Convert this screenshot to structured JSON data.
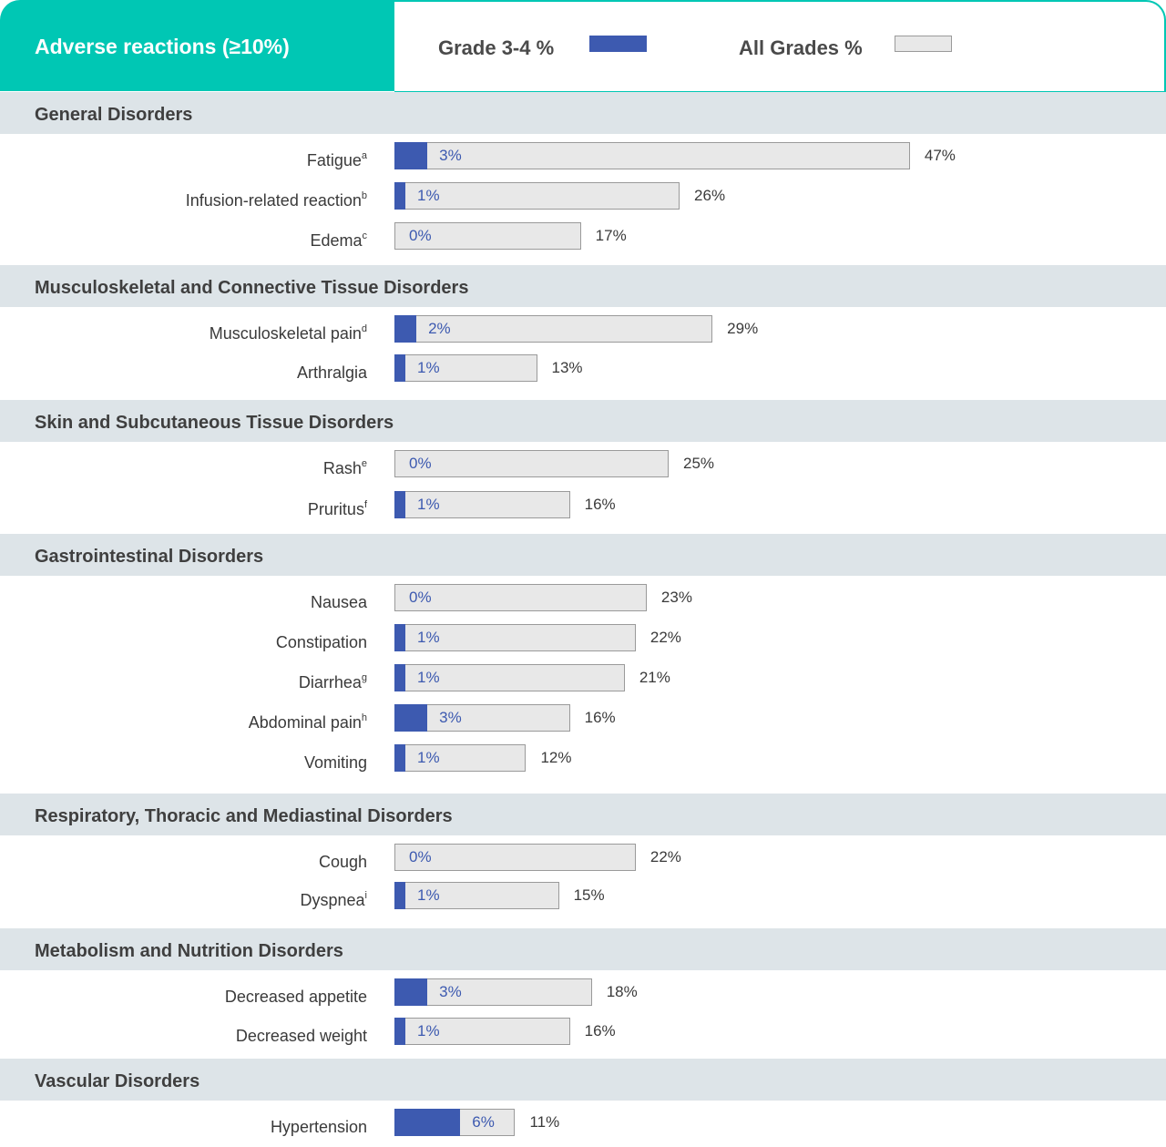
{
  "colors": {
    "header_accent": "#00c7b4",
    "grade34": "#3d5ab0",
    "all_grades": "#e8e8e8",
    "category_band": "#dde4e8"
  },
  "chart_data": {
    "type": "bar",
    "title": "Adverse reactions (≥10%)",
    "legend": [
      {
        "name": "Grade 3-4 %",
        "color": "#3d5ab0"
      },
      {
        "name": "All Grades %",
        "color": "#e8e8e8"
      }
    ],
    "legend_position": "top",
    "orientation": "horizontal",
    "groups": [
      {
        "name": "General Disorders",
        "items": [
          {
            "label": "Fatigue",
            "sup": "a",
            "grade34": 3,
            "all": 47
          },
          {
            "label": "Infusion-related reaction",
            "sup": "b",
            "grade34": 1,
            "all": 26
          },
          {
            "label": "Edema",
            "sup": "c",
            "grade34": 0,
            "all": 17
          }
        ]
      },
      {
        "name": "Musculoskeletal and Connective Tissue Disorders",
        "items": [
          {
            "label": "Musculoskeletal pain",
            "sup": "d",
            "grade34": 2,
            "all": 29
          },
          {
            "label": "Arthralgia",
            "sup": "",
            "grade34": 1,
            "all": 13
          }
        ]
      },
      {
        "name": "Skin and Subcutaneous Tissue Disorders",
        "items": [
          {
            "label": "Rash",
            "sup": "e",
            "grade34": 0,
            "all": 25
          },
          {
            "label": "Pruritus",
            "sup": "f",
            "grade34": 1,
            "all": 16
          }
        ]
      },
      {
        "name": "Gastrointestinal Disorders",
        "items": [
          {
            "label": "Nausea",
            "sup": "",
            "grade34": 0,
            "all": 23
          },
          {
            "label": "Constipation",
            "sup": "",
            "grade34": 1,
            "all": 22
          },
          {
            "label": "Diarrhea",
            "sup": "g",
            "grade34": 1,
            "all": 21
          },
          {
            "label": "Abdominal pain",
            "sup": "h",
            "grade34": 3,
            "all": 16
          },
          {
            "label": "Vomiting",
            "sup": "",
            "grade34": 1,
            "all": 12
          }
        ]
      },
      {
        "name": "Respiratory, Thoracic and Mediastinal Disorders",
        "items": [
          {
            "label": "Cough",
            "sup": "",
            "grade34": 0,
            "all": 22
          },
          {
            "label": "Dyspnea",
            "sup": "i",
            "grade34": 1,
            "all": 15
          }
        ]
      },
      {
        "name": "Metabolism and Nutrition Disorders",
        "items": [
          {
            "label": "Decreased appetite",
            "sup": "",
            "grade34": 3,
            "all": 18
          },
          {
            "label": "Decreased weight",
            "sup": "",
            "grade34": 1,
            "all": 16
          }
        ]
      },
      {
        "name": "Vascular Disorders",
        "items": [
          {
            "label": "Hypertension",
            "sup": "",
            "grade34": 6,
            "all": 11
          }
        ]
      }
    ]
  }
}
